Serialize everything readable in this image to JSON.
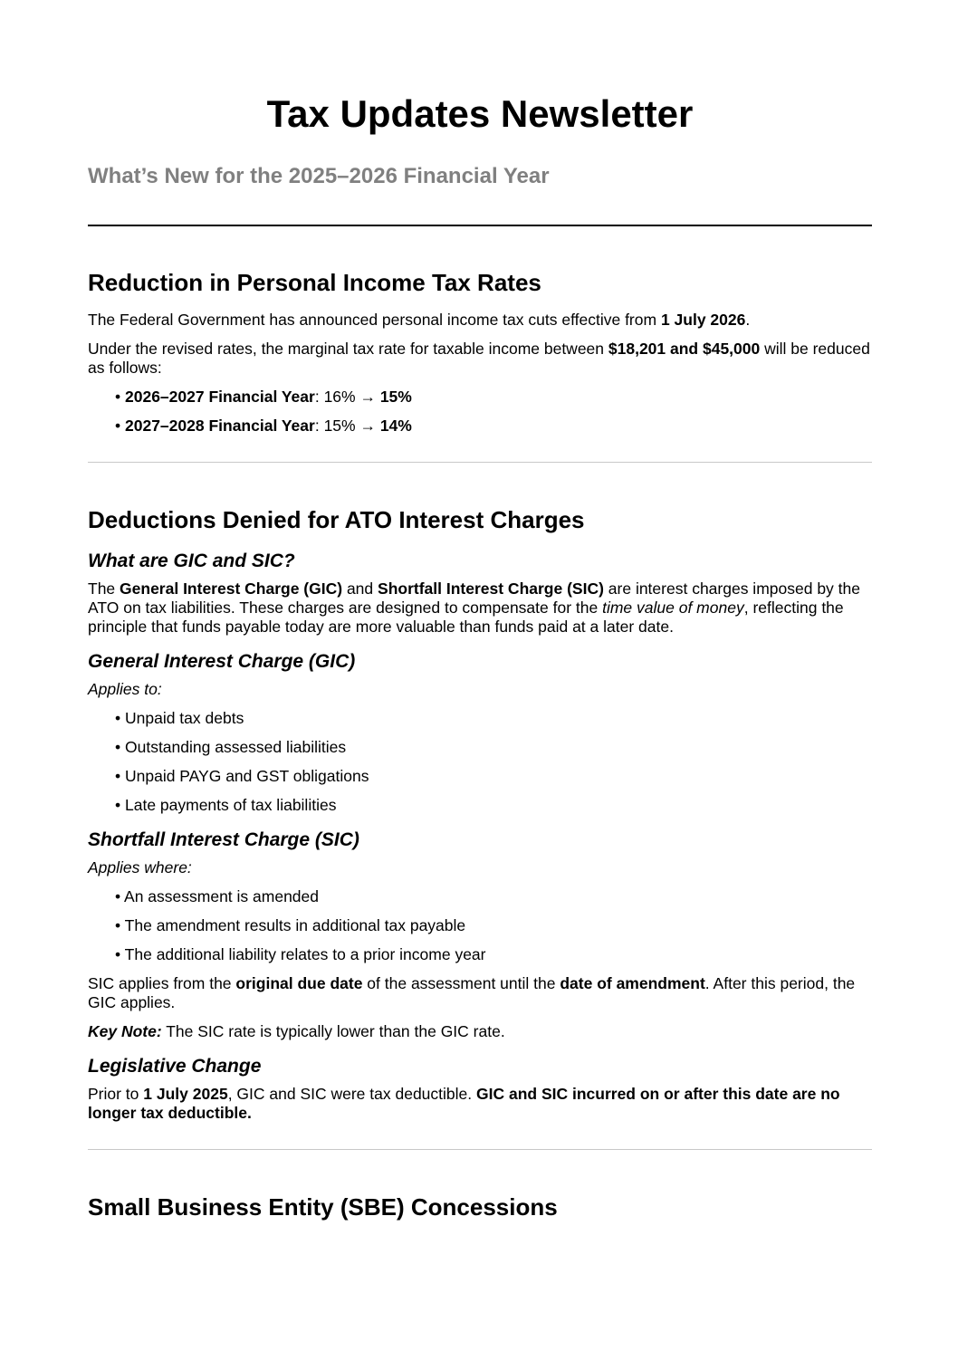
{
  "header": {
    "title": "Tax Updates Newsletter",
    "subtitle": "What’s New for the 2025–2026 Financial Year"
  },
  "sections": [
    {
      "heading": "Reduction in Personal Income Tax Rates",
      "blocks": [
        {
          "type": "p",
          "segs": [
            {
              "t": "The Federal Government has announced personal income tax cuts effective from "
            },
            {
              "t": "1 July 2026",
              "b": true
            },
            {
              "t": "."
            }
          ]
        },
        {
          "type": "p",
          "segs": [
            {
              "t": "Under the revised rates, the marginal tax rate for taxable income between "
            },
            {
              "t": "$18,201 and $45,000",
              "b": true
            },
            {
              "t": " will be reduced as follows:"
            }
          ]
        },
        {
          "type": "ul",
          "items": [
            [
              {
                "t": "• "
              },
              {
                "t": "2026–2027 Financial Year",
                "b": true
              },
              {
                "t": ": 16% → "
              },
              {
                "t": "15%",
                "b": true
              }
            ],
            [
              {
                "t": "• "
              },
              {
                "t": "2027–2028 Financial Year",
                "b": true
              },
              {
                "t": ": 15% → "
              },
              {
                "t": "14%",
                "b": true
              }
            ]
          ]
        }
      ]
    },
    {
      "heading": "Deductions Denied for ATO Interest Charges",
      "blocks": [
        {
          "type": "h3",
          "text": "What are GIC and SIC?"
        },
        {
          "type": "p",
          "segs": [
            {
              "t": "The "
            },
            {
              "t": "General Interest Charge (GIC)",
              "b": true
            },
            {
              "t": " and "
            },
            {
              "t": "Shortfall Interest Charge (SIC)",
              "b": true
            },
            {
              "t": " are interest charges imposed by the ATO on tax liabilities. These charges are designed to compensate for the "
            },
            {
              "t": "time value of money",
              "i": true
            },
            {
              "t": ", reflecting the principle that funds payable today are more valuable than funds paid at a later date."
            }
          ]
        },
        {
          "type": "h3",
          "text": "General Interest Charge (GIC)"
        },
        {
          "type": "p",
          "segs": [
            {
              "t": "Applies to:",
              "i": true
            }
          ]
        },
        {
          "type": "ul",
          "items": [
            [
              {
                "t": "• Unpaid tax debts"
              }
            ],
            [
              {
                "t": "• Outstanding assessed liabilities"
              }
            ],
            [
              {
                "t": "• Unpaid PAYG and GST obligations"
              }
            ],
            [
              {
                "t": "• Late payments of tax liabilities"
              }
            ]
          ]
        },
        {
          "type": "h3",
          "text": "Shortfall Interest Charge (SIC)"
        },
        {
          "type": "p",
          "segs": [
            {
              "t": "Applies where:",
              "i": true
            }
          ]
        },
        {
          "type": "ul",
          "items": [
            [
              {
                "t": "• An assessment is amended"
              }
            ],
            [
              {
                "t": "• The amendment results in additional tax payable"
              }
            ],
            [
              {
                "t": "• The additional liability relates to a prior income year"
              }
            ]
          ]
        },
        {
          "type": "p",
          "segs": [
            {
              "t": "SIC applies from the "
            },
            {
              "t": "original due date",
              "b": true
            },
            {
              "t": " of the assessment until the "
            },
            {
              "t": "date of amendment",
              "b": true
            },
            {
              "t": ". After this period, the GIC applies."
            }
          ]
        },
        {
          "type": "p",
          "segs": [
            {
              "t": "Key Note:",
              "b": true,
              "i": true
            },
            {
              "t": " The SIC rate is typically lower than the GIC rate."
            }
          ]
        },
        {
          "type": "h3",
          "text": "Legislative Change"
        },
        {
          "type": "p",
          "segs": [
            {
              "t": "Prior to "
            },
            {
              "t": "1 July 2025",
              "b": true
            },
            {
              "t": ", GIC and SIC were tax deductible. "
            },
            {
              "t": "GIC and SIC incurred on or after this date are no longer tax deductible.",
              "b": true
            }
          ]
        }
      ]
    },
    {
      "heading": "Small Business Entity (SBE) Concessions",
      "blocks": []
    }
  ]
}
